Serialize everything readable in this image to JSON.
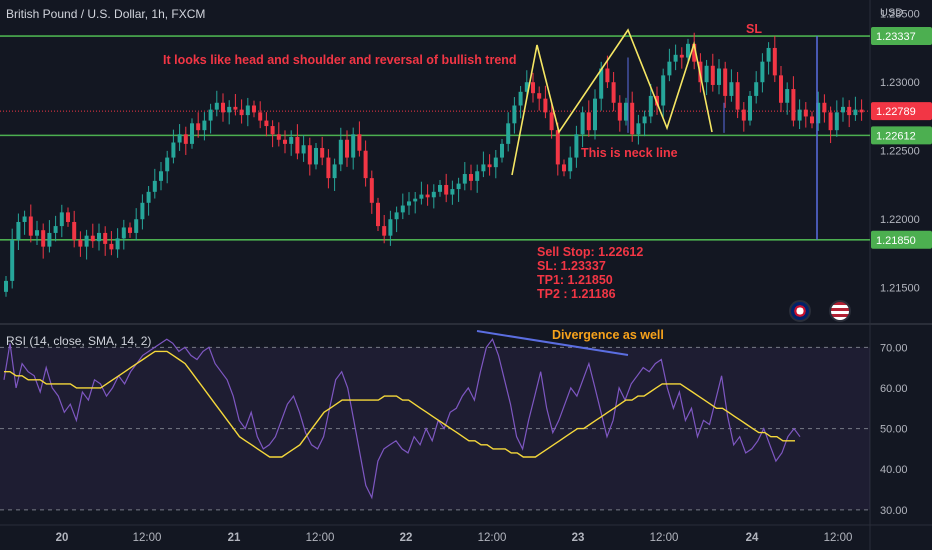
{
  "header": {
    "symbol": "British Pound / U.S. Dollar, 1h, FXCM"
  },
  "currency": "USD",
  "annotations": {
    "pattern": "It looks like head and shoulder and reversal of bullish trend",
    "neck": "This is neck line",
    "sl": "SL",
    "divergence": "Divergence as well",
    "trade": [
      "Sell Stop: 1.22612",
      "SL: 1.23337",
      "TP1: 1.21850",
      "TP2 : 1.21186"
    ]
  },
  "colors": {
    "bg": "#131722",
    "up": "#26a69a",
    "down": "#f23645",
    "level": "#4caf50",
    "rsi": "#7e57c2",
    "rsi_ma": "#f5d83b",
    "zigzag": "#f5e663",
    "sl_line": "#5b6ee1"
  },
  "chart_data": [
    {
      "type": "candlestick",
      "title": "British Pound / U.S. Dollar, 1h, FXCM",
      "ylim": [
        1.2125,
        1.236
      ],
      "yticks": [
        "1.21500",
        "1.22000",
        "1.22500",
        "1.23000",
        "1.23500"
      ],
      "xticks": [
        "20",
        "12:00",
        "21",
        "12:00",
        "22",
        "12:00",
        "23",
        "12:00",
        "24",
        "12:00"
      ],
      "levels": [
        {
          "value": 1.23337,
          "label": "1.23337"
        },
        {
          "value": 1.22612,
          "label": "1.22612"
        },
        {
          "value": 1.2185,
          "label": "1.21850"
        }
      ],
      "last_price": {
        "value": 1.22789,
        "label": "1.22789"
      },
      "closes": [
        1.2155,
        1.2185,
        1.2198,
        1.2202,
        1.2188,
        1.2192,
        1.218,
        1.219,
        1.2195,
        1.2205,
        1.2198,
        1.2185,
        1.218,
        1.2188,
        1.2184,
        1.219,
        1.2182,
        1.2178,
        1.2186,
        1.2194,
        1.219,
        1.22,
        1.2212,
        1.222,
        1.2228,
        1.2235,
        1.2245,
        1.2256,
        1.2262,
        1.2255,
        1.227,
        1.2265,
        1.2272,
        1.228,
        1.2285,
        1.2278,
        1.2282,
        1.228,
        1.2276,
        1.2283,
        1.2278,
        1.2272,
        1.2268,
        1.2262,
        1.2258,
        1.2255,
        1.226,
        1.2248,
        1.2254,
        1.224,
        1.2252,
        1.2245,
        1.223,
        1.224,
        1.2258,
        1.2245,
        1.2262,
        1.225,
        1.223,
        1.2212,
        1.2195,
        1.2188,
        1.22,
        1.2205,
        1.221,
        1.2213,
        1.2215,
        1.2218,
        1.2216,
        1.222,
        1.2225,
        1.2218,
        1.2222,
        1.2226,
        1.2233,
        1.2228,
        1.2235,
        1.224,
        1.2238,
        1.2245,
        1.2255,
        1.227,
        1.2283,
        1.2293,
        1.23,
        1.2292,
        1.2288,
        1.2278,
        1.2265,
        1.224,
        1.2235,
        1.2245,
        1.2262,
        1.2278,
        1.2265,
        1.2288,
        1.231,
        1.23,
        1.2285,
        1.2272,
        1.2285,
        1.2262,
        1.227,
        1.2275,
        1.229,
        1.2283,
        1.2305,
        1.2315,
        1.232,
        1.2318,
        1.2328,
        1.2315,
        1.23,
        1.2312,
        1.2298,
        1.231,
        1.229,
        1.23,
        1.228,
        1.2272,
        1.229,
        1.23,
        1.2315,
        1.2325,
        1.2305,
        1.2285,
        1.2295,
        1.2272,
        1.228,
        1.2275,
        1.227,
        1.2285,
        1.2278,
        1.2265,
        1.2278,
        1.2282,
        1.2276,
        1.228,
        1.2278
      ],
      "opens_offset": 0.0009
    },
    {
      "type": "line",
      "title": "RSI (14, close, SMA, 14, 2)",
      "ylim": [
        27,
        75
      ],
      "yticks": [
        "30.00",
        "40.00",
        "50.00",
        "60.00",
        "70.00"
      ],
      "series": [
        {
          "values": [
            62,
            71,
            60,
            66,
            64,
            63,
            59,
            65,
            60,
            58,
            54,
            56,
            52,
            59,
            57,
            62,
            61,
            58,
            60,
            63,
            61,
            64,
            66,
            68,
            69,
            70,
            71,
            72,
            71,
            69,
            70,
            68,
            67,
            69,
            70,
            66,
            64,
            62,
            58,
            52,
            50,
            54,
            48,
            45,
            46,
            48,
            52,
            56,
            58,
            54,
            49,
            46,
            45,
            48,
            55,
            62,
            64,
            60,
            52,
            44,
            36,
            33,
            42,
            45,
            46,
            47,
            45,
            44,
            48,
            46,
            50,
            47,
            52,
            50,
            54,
            55,
            58,
            60,
            57,
            64,
            70,
            72,
            68,
            62,
            56,
            48,
            45,
            52,
            58,
            64,
            55,
            49,
            52,
            56,
            60,
            58,
            62,
            66,
            60,
            54,
            48,
            52,
            60,
            57,
            61,
            63,
            65,
            64,
            66,
            67,
            60,
            55,
            59,
            52,
            55,
            48,
            52,
            51,
            57,
            63,
            53,
            46,
            48,
            44,
            45,
            47,
            50,
            46,
            42,
            44,
            48,
            50,
            48
          ]
        },
        {
          "values": [
            64,
            64,
            63,
            63,
            62,
            62,
            62,
            61,
            61,
            61,
            61,
            61,
            60,
            60,
            60,
            60,
            60,
            61,
            62,
            63,
            64,
            65,
            66,
            67,
            68,
            69,
            69,
            69,
            68,
            67,
            66,
            64,
            62,
            60,
            58,
            56,
            54,
            52,
            50,
            48,
            47,
            46,
            45,
            44,
            43,
            43,
            43,
            44,
            45,
            46,
            48,
            50,
            52,
            54,
            55,
            56,
            57,
            57,
            57,
            57,
            57,
            57,
            57,
            58,
            58,
            58,
            57,
            57,
            56,
            55,
            54,
            53,
            52,
            51,
            50,
            49,
            48,
            47,
            47,
            46,
            46,
            45,
            45,
            45,
            44,
            44,
            43,
            43,
            43,
            44,
            45,
            46,
            47,
            48,
            49,
            50,
            50,
            51,
            52,
            53,
            54,
            55,
            56,
            57,
            57,
            58,
            58,
            59,
            60,
            61,
            61,
            61,
            61,
            60,
            59,
            58,
            57,
            56,
            55,
            55,
            54,
            53,
            52,
            51,
            50,
            49,
            49,
            48,
            48,
            47,
            47,
            47
          ]
        }
      ],
      "levels": [
        70,
        50,
        30
      ]
    }
  ]
}
